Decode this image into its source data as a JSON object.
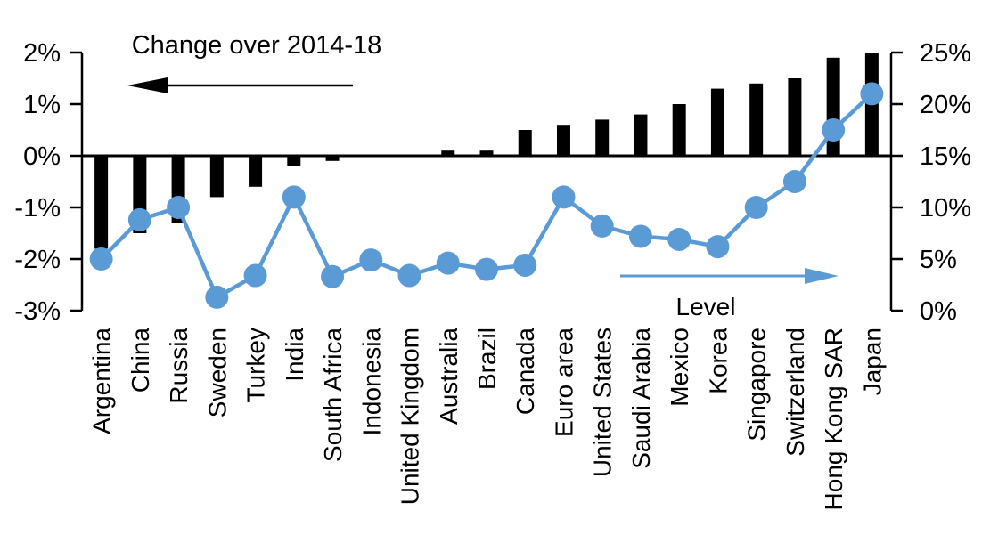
{
  "chart_data": {
    "type": "combo-bar-line-dual-axis",
    "title": "",
    "grid": "off",
    "legend_position": "none (in-plot arrow annotations)",
    "categories": [
      "Argentina",
      "China",
      "Russia",
      "Sweden",
      "Turkey",
      "India",
      "South Africa",
      "Indonesia",
      "United Kingdom",
      "Australia",
      "Brazil",
      "Canada",
      "Euro area",
      "United States",
      "Saudi Arabia",
      "Mexico",
      "Korea",
      "Singapore",
      "Switzerland",
      "Hong Kong SAR",
      "Japan"
    ],
    "series": [
      {
        "name": "Change over 2014-18",
        "type": "bar",
        "axis": "left",
        "color": "#000000",
        "values": [
          -1.8,
          -1.5,
          -1.3,
          -0.8,
          -0.6,
          -0.2,
          -0.1,
          0,
          0,
          0.1,
          0.1,
          0.5,
          0.6,
          0.7,
          0.8,
          1.0,
          1.3,
          1.4,
          1.5,
          1.9,
          2.0
        ]
      },
      {
        "name": "Level",
        "type": "line",
        "axis": "right",
        "color": "#5B9BD5",
        "values": [
          5.0,
          8.8,
          10.0,
          1.3,
          3.4,
          11.0,
          3.3,
          4.9,
          3.4,
          4.6,
          4.0,
          4.4,
          11.0,
          8.2,
          7.2,
          6.9,
          6.2,
          10.0,
          12.5,
          17.5,
          21.0
        ]
      }
    ],
    "left_axis": {
      "min": -3,
      "max": 2,
      "tick_values": [
        2,
        1,
        0,
        -1,
        -2,
        -3
      ],
      "tick_labels": [
        "2%",
        "1%",
        "0%",
        "-1%",
        "-2%",
        "-3%"
      ]
    },
    "right_axis": {
      "min": 0,
      "max": 25,
      "tick_values": [
        25,
        20,
        15,
        10,
        5,
        0
      ],
      "tick_labels": [
        "25%",
        "20%",
        "15%",
        "10%",
        "5%",
        "0%"
      ]
    },
    "annotations": {
      "bar_series_label": "Change over 2014-18",
      "line_series_label": "Level",
      "bar_arrow_direction": "left",
      "line_arrow_direction": "right"
    }
  }
}
